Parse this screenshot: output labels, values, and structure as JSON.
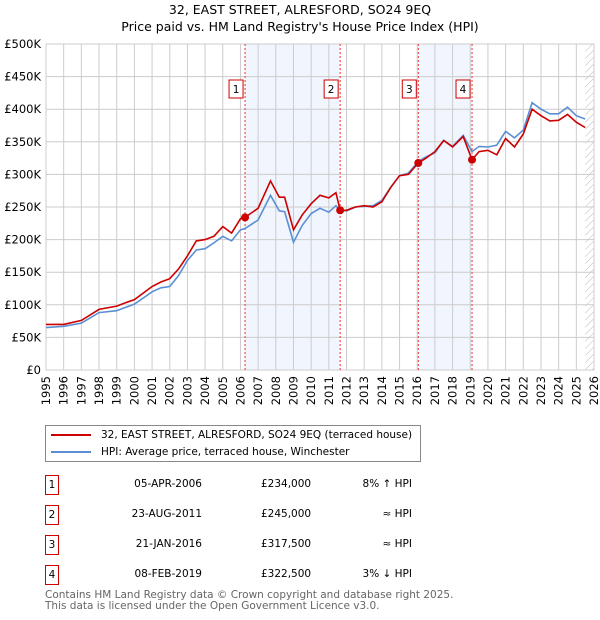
{
  "title": "32, EAST STREET, ALRESFORD, SO24 9EQ",
  "subtitle": "Price paid vs. HM Land Registry's House Price Index (HPI)",
  "chart_data": {
    "type": "line",
    "ylabel": "",
    "xlabel": "",
    "ylim": [
      0,
      500000
    ],
    "xlim": [
      1995,
      2026
    ],
    "yticks": [
      {
        "v": 0,
        "label": "£0"
      },
      {
        "v": 50000,
        "label": "£50K"
      },
      {
        "v": 100000,
        "label": "£100K"
      },
      {
        "v": 150000,
        "label": "£150K"
      },
      {
        "v": 200000,
        "label": "£200K"
      },
      {
        "v": 250000,
        "label": "£250K"
      },
      {
        "v": 300000,
        "label": "£300K"
      },
      {
        "v": 350000,
        "label": "£350K"
      },
      {
        "v": 400000,
        "label": "£400K"
      },
      {
        "v": 450000,
        "label": "£450K"
      },
      {
        "v": 500000,
        "label": "£500K"
      }
    ],
    "xticks": [
      "1995",
      "1996",
      "1997",
      "1998",
      "1999",
      "2000",
      "2001",
      "2002",
      "2003",
      "2004",
      "2005",
      "2006",
      "2007",
      "2008",
      "2009",
      "2010",
      "2011",
      "2012",
      "2013",
      "2014",
      "2015",
      "2016",
      "2017",
      "2018",
      "2019",
      "2020",
      "2021",
      "2022",
      "2023",
      "2024",
      "2025",
      "2026"
    ],
    "grid": true,
    "shaded_ranges": [
      [
        2006.26,
        2011.64
      ],
      [
        2016.06,
        2019.1
      ]
    ],
    "future_hatch_from": 2025.5,
    "series": [
      {
        "name": "32, EAST STREET, ALRESFORD, SO24 9EQ (terraced house)",
        "color": "#cc0000",
        "x": [
          1995,
          1996,
          1997,
          1998,
          1999,
          1999.5,
          2000,
          2001,
          2001.5,
          2002,
          2002.5,
          2003,
          2003.5,
          2004,
          2004.5,
          2005,
          2005.5,
          2006,
          2006.26,
          2007,
          2007.7,
          2008.2,
          2008.5,
          2009,
          2009.5,
          2010,
          2010.5,
          2011,
          2011.4,
          2011.64,
          2012,
          2012.5,
          2013,
          2013.5,
          2014,
          2014.5,
          2015,
          2015.5,
          2016.06,
          2016.5,
          2017,
          2017.5,
          2018,
          2018.6,
          2019.1,
          2019.5,
          2020,
          2020.5,
          2021,
          2021.5,
          2022,
          2022.5,
          2023,
          2023.5,
          2024,
          2024.5,
          2025,
          2025.5
        ],
        "y": [
          70000,
          70000,
          76000,
          93000,
          98000,
          103000,
          108000,
          128000,
          135000,
          140000,
          155000,
          175000,
          198000,
          200000,
          205000,
          220000,
          210000,
          232000,
          234000,
          248000,
          290000,
          265000,
          265000,
          215000,
          238000,
          255000,
          268000,
          264000,
          272000,
          245000,
          245000,
          250000,
          252000,
          250000,
          258000,
          280000,
          298000,
          300000,
          317500,
          325000,
          335000,
          352000,
          342000,
          358000,
          322500,
          335000,
          337000,
          330000,
          355000,
          342000,
          362000,
          400000,
          390000,
          382000,
          383000,
          392000,
          380000,
          372000
        ]
      },
      {
        "name": "HPI: Average price, terraced house, Winchester",
        "color": "#5b8fd4",
        "x": [
          1995,
          1996,
          1997,
          1998,
          1999,
          1999.5,
          2000,
          2001,
          2001.5,
          2002,
          2002.5,
          2003,
          2003.5,
          2004,
          2004.5,
          2005,
          2005.5,
          2006,
          2006.26,
          2007,
          2007.7,
          2008.2,
          2008.5,
          2009,
          2009.5,
          2010,
          2010.5,
          2011,
          2011.4,
          2011.64,
          2012,
          2012.5,
          2013,
          2013.5,
          2014,
          2014.5,
          2015,
          2015.5,
          2016.06,
          2016.5,
          2017,
          2017.5,
          2018,
          2018.6,
          2019.1,
          2019.5,
          2020,
          2020.5,
          2021,
          2021.5,
          2022,
          2022.5,
          2023,
          2023.5,
          2024,
          2024.5,
          2025,
          2025.5
        ],
        "y": [
          65000,
          67000,
          72000,
          88000,
          91000,
          96000,
          101000,
          120000,
          126000,
          128000,
          145000,
          168000,
          184000,
          186000,
          195000,
          205000,
          198000,
          215000,
          217000,
          230000,
          268000,
          244000,
          243000,
          196000,
          222000,
          240000,
          248000,
          242000,
          252000,
          245000,
          244000,
          250000,
          251000,
          252000,
          260000,
          280000,
          298000,
          302000,
          320000,
          327000,
          333000,
          352000,
          343000,
          360000,
          335000,
          343000,
          342000,
          345000,
          366000,
          356000,
          368000,
          410000,
          400000,
          393000,
          393000,
          403000,
          390000,
          385000
        ]
      }
    ],
    "sales": [
      {
        "num": "1",
        "x": 2006.26,
        "y": 234000
      },
      {
        "num": "2",
        "x": 2011.64,
        "y": 245000
      },
      {
        "num": "3",
        "x": 2016.06,
        "y": 317500
      },
      {
        "num": "4",
        "x": 2019.1,
        "y": 322500
      }
    ]
  },
  "legend": [
    {
      "label": "32, EAST STREET, ALRESFORD, SO24 9EQ (terraced house)",
      "color": "#cc0000"
    },
    {
      "label": "HPI: Average price, terraced house, Winchester",
      "color": "#5b8fd4"
    }
  ],
  "table": [
    {
      "num": "1",
      "date": "05-APR-2006",
      "price": "£234,000",
      "hpi": "8% ↑ HPI"
    },
    {
      "num": "2",
      "date": "23-AUG-2011",
      "price": "£245,000",
      "hpi": "≈ HPI"
    },
    {
      "num": "3",
      "date": "21-JAN-2016",
      "price": "£317,500",
      "hpi": "≈ HPI"
    },
    {
      "num": "4",
      "date": "08-FEB-2019",
      "price": "£322,500",
      "hpi": "3% ↓ HPI"
    }
  ],
  "footer": [
    "Contains HM Land Registry data © Crown copyright and database right 2025.",
    "This data is licensed under the Open Government Licence v3.0."
  ]
}
